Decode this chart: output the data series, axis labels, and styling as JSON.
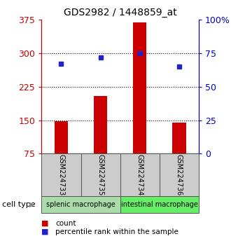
{
  "title": "GDS2982 / 1448859_at",
  "samples": [
    "GSM224733",
    "GSM224735",
    "GSM224734",
    "GSM224736"
  ],
  "counts": [
    148,
    205,
    370,
    145
  ],
  "percentile_ranks": [
    67,
    72,
    75,
    65
  ],
  "y_min": 75,
  "y_max": 375,
  "y_ticks_left": [
    75,
    150,
    225,
    300,
    375
  ],
  "y_ticks_right": [
    0,
    25,
    50,
    75,
    100
  ],
  "bar_color": "#cc0000",
  "dot_color": "#2222cc",
  "groups": [
    {
      "label": "splenic macrophage",
      "samples": [
        0,
        1
      ],
      "color": "#aaddaa"
    },
    {
      "label": "intestinal macrophage",
      "samples": [
        2,
        3
      ],
      "color": "#66ee66"
    }
  ],
  "cell_type_label": "cell type",
  "legend_count_label": "count",
  "legend_pct_label": "percentile rank within the sample",
  "sample_box_color": "#cccccc",
  "sample_box_border": "#555555",
  "bar_width": 0.35,
  "figsize": [
    3.3,
    3.54
  ],
  "dpi": 100
}
